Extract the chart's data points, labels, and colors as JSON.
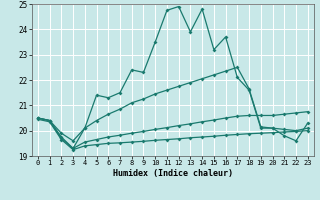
{
  "xlabel": "Humidex (Indice chaleur)",
  "xlim": [
    -0.5,
    23.5
  ],
  "ylim": [
    19,
    25
  ],
  "yticks": [
    19,
    20,
    21,
    22,
    23,
    24,
    25
  ],
  "xticks": [
    0,
    1,
    2,
    3,
    4,
    5,
    6,
    7,
    8,
    9,
    10,
    11,
    12,
    13,
    14,
    15,
    16,
    17,
    18,
    19,
    20,
    21,
    22,
    23
  ],
  "background_color": "#c8e8e8",
  "grid_color": "#b0d0d0",
  "line_color": "#1a7a6e",
  "series_max": [
    20.5,
    20.4,
    19.7,
    19.3,
    20.1,
    21.4,
    21.3,
    21.5,
    22.4,
    22.3,
    23.5,
    24.75,
    24.9,
    23.9,
    24.8,
    23.2,
    23.7,
    22.1,
    21.6,
    20.1,
    20.1,
    19.8,
    19.6,
    20.3
  ],
  "series_upper": [
    20.5,
    20.4,
    19.9,
    19.6,
    20.1,
    20.4,
    20.65,
    20.85,
    21.1,
    21.25,
    21.45,
    21.6,
    21.75,
    21.9,
    22.05,
    22.2,
    22.35,
    22.5,
    21.65,
    20.15,
    20.1,
    20.05,
    20.0,
    20.1
  ],
  "series_lower": [
    20.5,
    20.4,
    19.75,
    19.3,
    19.55,
    19.65,
    19.75,
    19.82,
    19.9,
    19.97,
    20.05,
    20.12,
    20.2,
    20.27,
    20.35,
    20.42,
    20.5,
    20.57,
    20.6,
    20.6,
    20.6,
    20.65,
    20.7,
    20.75
  ],
  "series_min": [
    20.45,
    20.35,
    19.65,
    19.25,
    19.4,
    19.45,
    19.5,
    19.52,
    19.55,
    19.58,
    19.62,
    19.65,
    19.68,
    19.72,
    19.75,
    19.78,
    19.82,
    19.85,
    19.88,
    19.9,
    19.92,
    19.95,
    19.97,
    20.0
  ]
}
